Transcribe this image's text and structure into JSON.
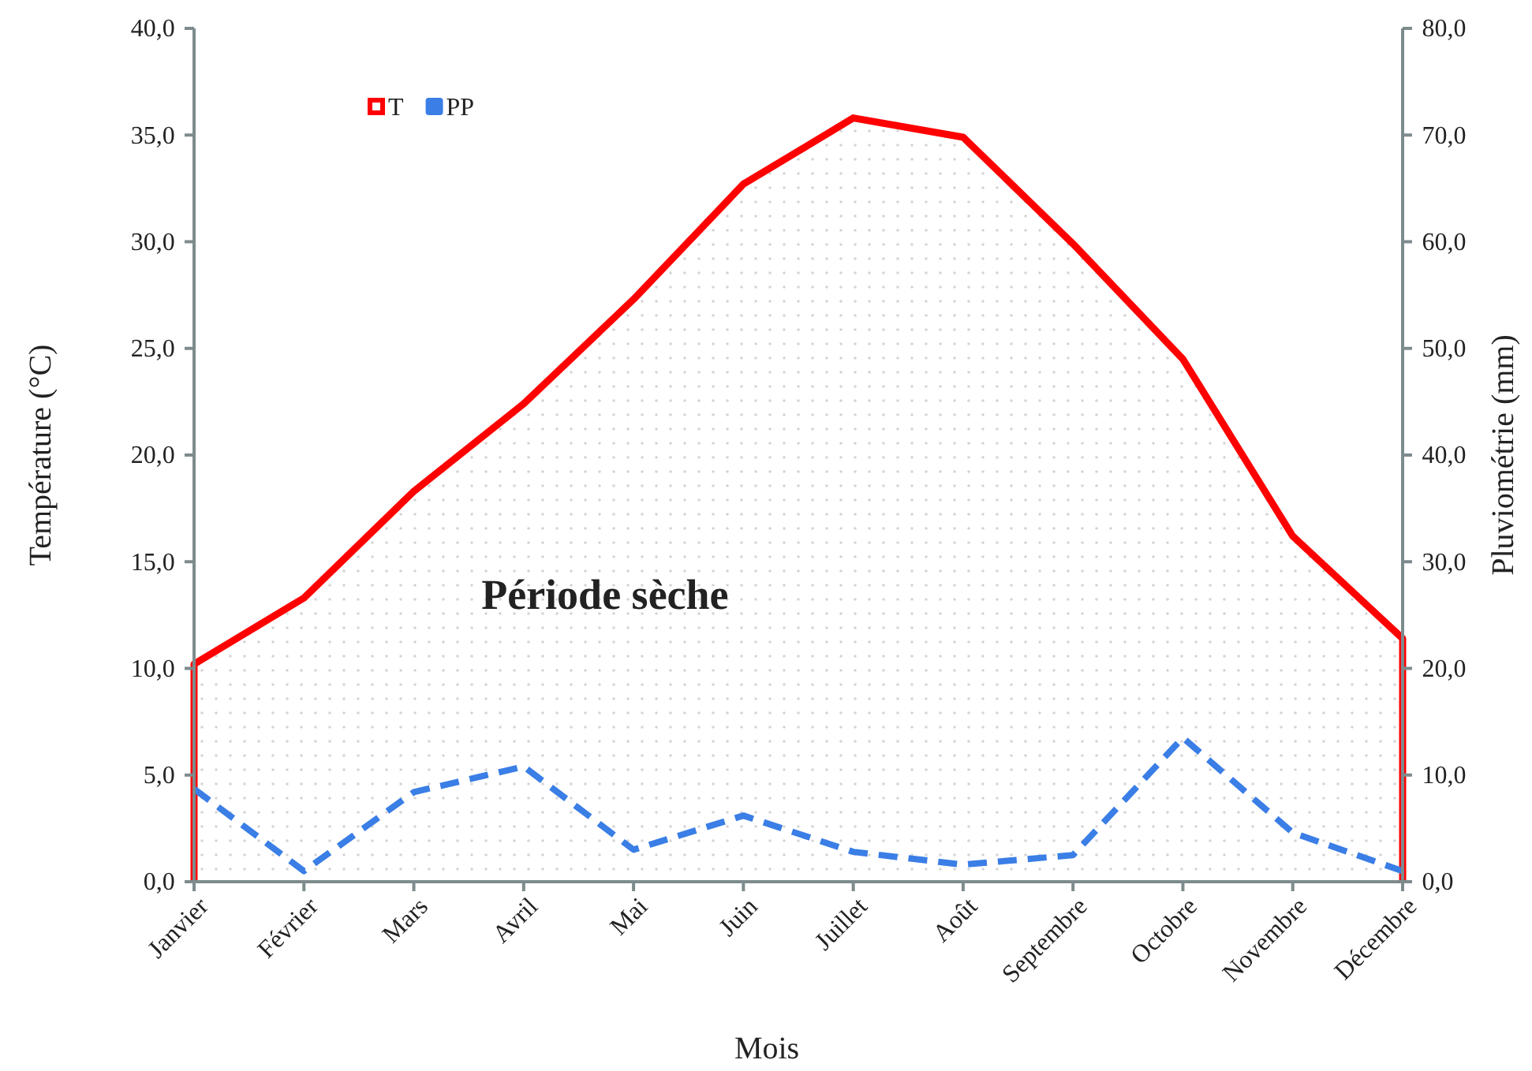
{
  "chart_data": {
    "type": "line",
    "xlabel": "Mois",
    "ylabel": "Température (°C)",
    "y2label": "Pluviométrie (mm)",
    "categories": [
      "Janvier",
      "Février",
      "Mars",
      "Avril",
      "Mai",
      "Juin",
      "Juillet",
      "Août",
      "Septembre",
      "Octobre",
      "Novembre",
      "Décembre"
    ],
    "series": [
      {
        "name": "T",
        "type": "area",
        "color": "#ff0000",
        "values": [
          10.2,
          13.3,
          18.3,
          22.4,
          27.3,
          32.7,
          35.8,
          34.9,
          29.9,
          24.5,
          16.2,
          11.4
        ]
      },
      {
        "name": "PP",
        "axis": "y2",
        "color": "#3a7ee6",
        "line_style": "dashed",
        "values": [
          8.7,
          1.0,
          8.4,
          10.8,
          3.0,
          6.2,
          2.8,
          1.6,
          2.5,
          13.5,
          4.6,
          1.0
        ]
      }
    ],
    "ylim": [
      0,
      40
    ],
    "yticks": [
      {
        "value": 0,
        "label": "0,0"
      },
      {
        "value": 5,
        "label": "5,0"
      },
      {
        "value": 10,
        "label": "10,0"
      },
      {
        "value": 15,
        "label": "15,0"
      },
      {
        "value": 20,
        "label": "20,0"
      },
      {
        "value": 25,
        "label": "25,0"
      },
      {
        "value": 30,
        "label": "30,0"
      },
      {
        "value": 35,
        "label": "35,0"
      },
      {
        "value": 40,
        "label": "40,0"
      }
    ],
    "y2lim": [
      0,
      80
    ],
    "y2ticks": [
      {
        "value": 0,
        "label": "0,0"
      },
      {
        "value": 10,
        "label": "10,0"
      },
      {
        "value": 20,
        "label": "20,0"
      },
      {
        "value": 30,
        "label": "30,0"
      },
      {
        "value": 40,
        "label": "40,0"
      },
      {
        "value": 50,
        "label": "50,0"
      },
      {
        "value": 60,
        "label": "60,0"
      },
      {
        "value": 70,
        "label": "70,0"
      },
      {
        "value": 80,
        "label": "80,0"
      }
    ],
    "legend": "top left",
    "annotations": [
      "Période sèche"
    ]
  }
}
